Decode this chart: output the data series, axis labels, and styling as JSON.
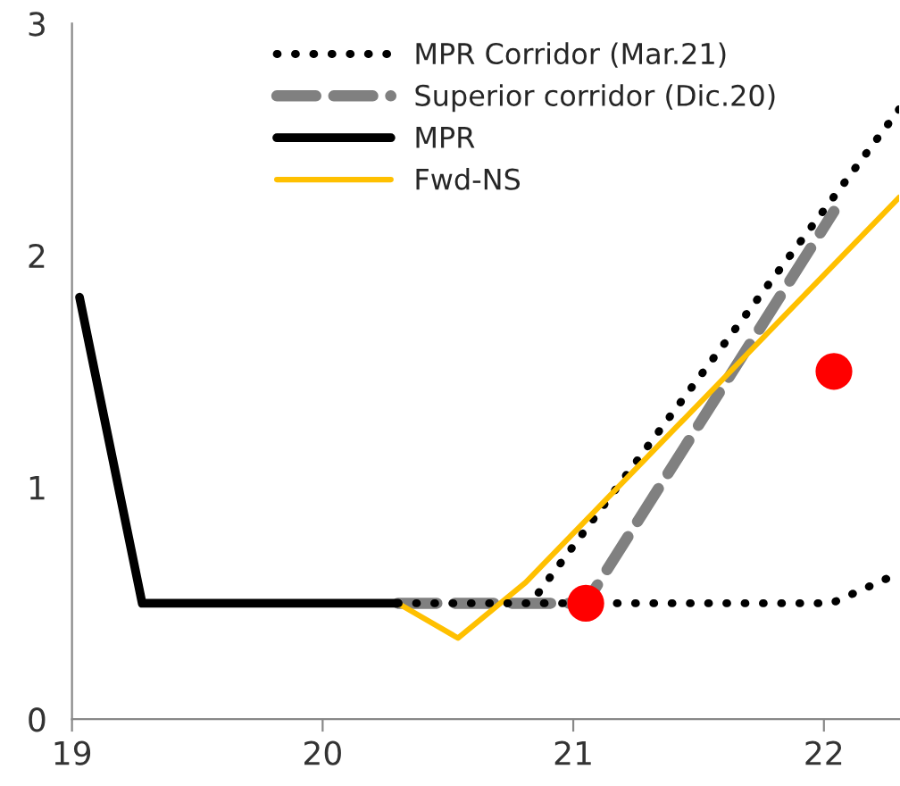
{
  "chart_data": {
    "type": "line",
    "xlim": [
      19,
      22.3
    ],
    "ylim": [
      0,
      3
    ],
    "xticks": [
      19,
      20,
      21,
      22
    ],
    "yticks": [
      0,
      1,
      2,
      3
    ],
    "grid": false,
    "legend": "top",
    "series": [
      {
        "name": "MPR Corridor (Mar.21)",
        "color": "#000000",
        "line_style": "dotted",
        "x": [
          20.3,
          20.83,
          22.3
        ],
        "values": [
          0.5,
          0.5,
          2.63
        ]
      },
      {
        "name": "Superior corridor (Dic.20)",
        "color": "#808080",
        "line_style": "dashed",
        "x": [
          20.3,
          21.05,
          22.04
        ],
        "values": [
          0.5,
          0.5,
          2.19
        ]
      },
      {
        "name": "MPR",
        "color": "#000000",
        "line_style": "solid",
        "x": [
          19.03,
          19.28,
          20.3
        ],
        "values": [
          1.82,
          0.5,
          0.5
        ]
      },
      {
        "name": "Fwd-NS",
        "color": "#ffc000",
        "line_style": "solid",
        "x": [
          20.3,
          20.54,
          20.81,
          22.3
        ],
        "values": [
          0.5,
          0.35,
          0.59,
          2.25
        ]
      },
      {
        "type": "scatter",
        "color": "#ff0000",
        "marker": "circle",
        "x": [
          21.05,
          22.04
        ],
        "values": [
          0.5,
          1.5
        ]
      },
      {
        "color": "#000000",
        "line_style": "dotted",
        "x": [
          20.3,
          22.03,
          22.3
        ],
        "values": [
          0.5,
          0.5,
          0.63
        ]
      }
    ]
  }
}
